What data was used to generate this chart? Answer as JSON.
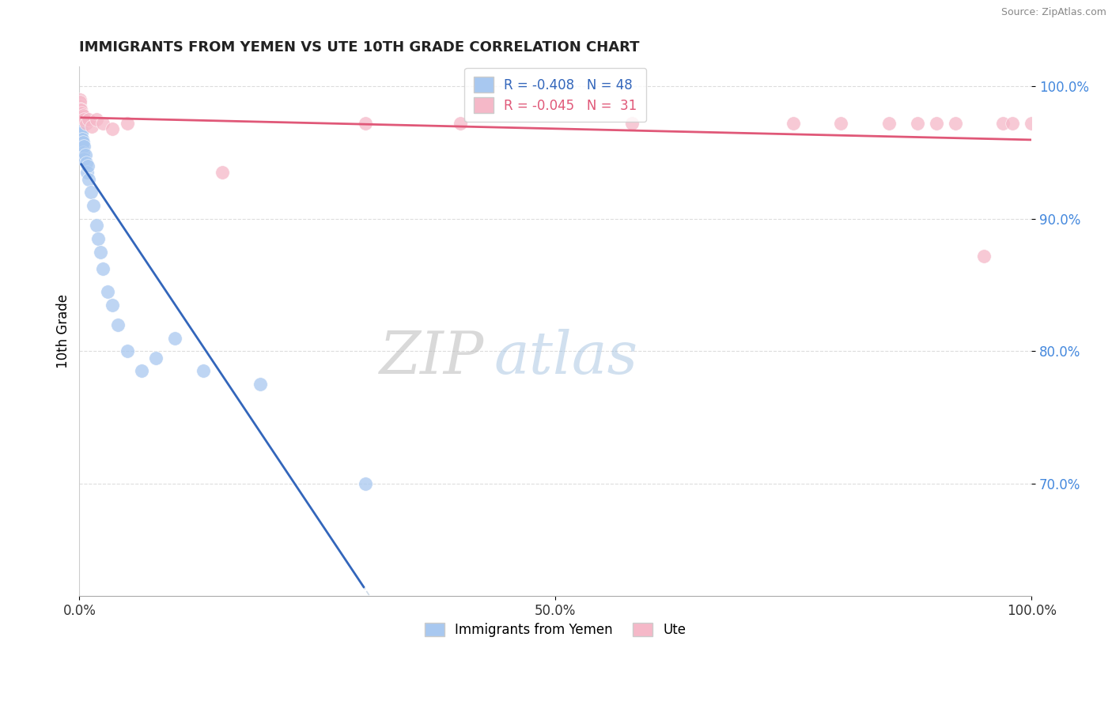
{
  "title": "IMMIGRANTS FROM YEMEN VS UTE 10TH GRADE CORRELATION CHART",
  "source": "Source: ZipAtlas.com",
  "xlabel_blue": "Immigrants from Yemen",
  "xlabel_pink": "Ute",
  "ylabel": "10th Grade",
  "watermark_zip": "ZIP",
  "watermark_atlas": "atlas",
  "blue_R": -0.408,
  "blue_N": 48,
  "pink_R": -0.045,
  "pink_N": 31,
  "blue_color": "#A8C8F0",
  "pink_color": "#F5B8C8",
  "trend_blue": "#3366BB",
  "trend_pink": "#E05878",
  "background": "#FFFFFF",
  "blue_points_x": [
    0.0002,
    0.0003,
    0.0004,
    0.0005,
    0.0006,
    0.0007,
    0.0008,
    0.001,
    0.001,
    0.001,
    0.001,
    0.0012,
    0.0014,
    0.0015,
    0.0016,
    0.0018,
    0.002,
    0.002,
    0.002,
    0.0025,
    0.003,
    0.003,
    0.003,
    0.004,
    0.004,
    0.005,
    0.005,
    0.006,
    0.007,
    0.008,
    0.009,
    0.01,
    0.012,
    0.015,
    0.018,
    0.02,
    0.022,
    0.025,
    0.03,
    0.035,
    0.04,
    0.05,
    0.065,
    0.08,
    0.1,
    0.13,
    0.19,
    0.3
  ],
  "blue_points_y": [
    0.972,
    0.97,
    0.968,
    0.966,
    0.964,
    0.962,
    0.96,
    0.975,
    0.972,
    0.968,
    0.965,
    0.97,
    0.966,
    0.963,
    0.968,
    0.96,
    0.965,
    0.958,
    0.952,
    0.955,
    0.96,
    0.955,
    0.948,
    0.958,
    0.95,
    0.955,
    0.945,
    0.948,
    0.942,
    0.935,
    0.94,
    0.93,
    0.92,
    0.91,
    0.895,
    0.885,
    0.875,
    0.862,
    0.845,
    0.835,
    0.82,
    0.8,
    0.785,
    0.795,
    0.81,
    0.785,
    0.775,
    0.7
  ],
  "pink_points_x": [
    0.0002,
    0.0004,
    0.0006,
    0.001,
    0.001,
    0.0015,
    0.002,
    0.003,
    0.004,
    0.005,
    0.007,
    0.01,
    0.013,
    0.018,
    0.025,
    0.035,
    0.05,
    0.15,
    0.3,
    0.4,
    0.58,
    0.75,
    0.8,
    0.85,
    0.88,
    0.9,
    0.92,
    0.95,
    0.97,
    0.98,
    1.0
  ],
  "pink_points_y": [
    0.99,
    0.985,
    0.988,
    0.983,
    0.978,
    0.982,
    0.98,
    0.977,
    0.978,
    0.975,
    0.972,
    0.975,
    0.97,
    0.975,
    0.972,
    0.968,
    0.972,
    0.935,
    0.972,
    0.972,
    0.972,
    0.972,
    0.972,
    0.972,
    0.972,
    0.972,
    0.972,
    0.872,
    0.972,
    0.972,
    0.972
  ],
  "xlim": [
    0.0,
    1.0
  ],
  "ylim": [
    0.615,
    1.015
  ],
  "yticks": [
    0.7,
    0.8,
    0.9,
    1.0
  ],
  "ytick_labels": [
    "70.0%",
    "80.0%",
    "90.0%",
    "100.0%"
  ],
  "xticks": [
    0.0,
    0.5,
    1.0
  ],
  "xtick_labels": [
    "0.0%",
    "50.0%",
    "100.0%"
  ],
  "ytick_color": "#4488DD",
  "xtick_color": "#333333"
}
